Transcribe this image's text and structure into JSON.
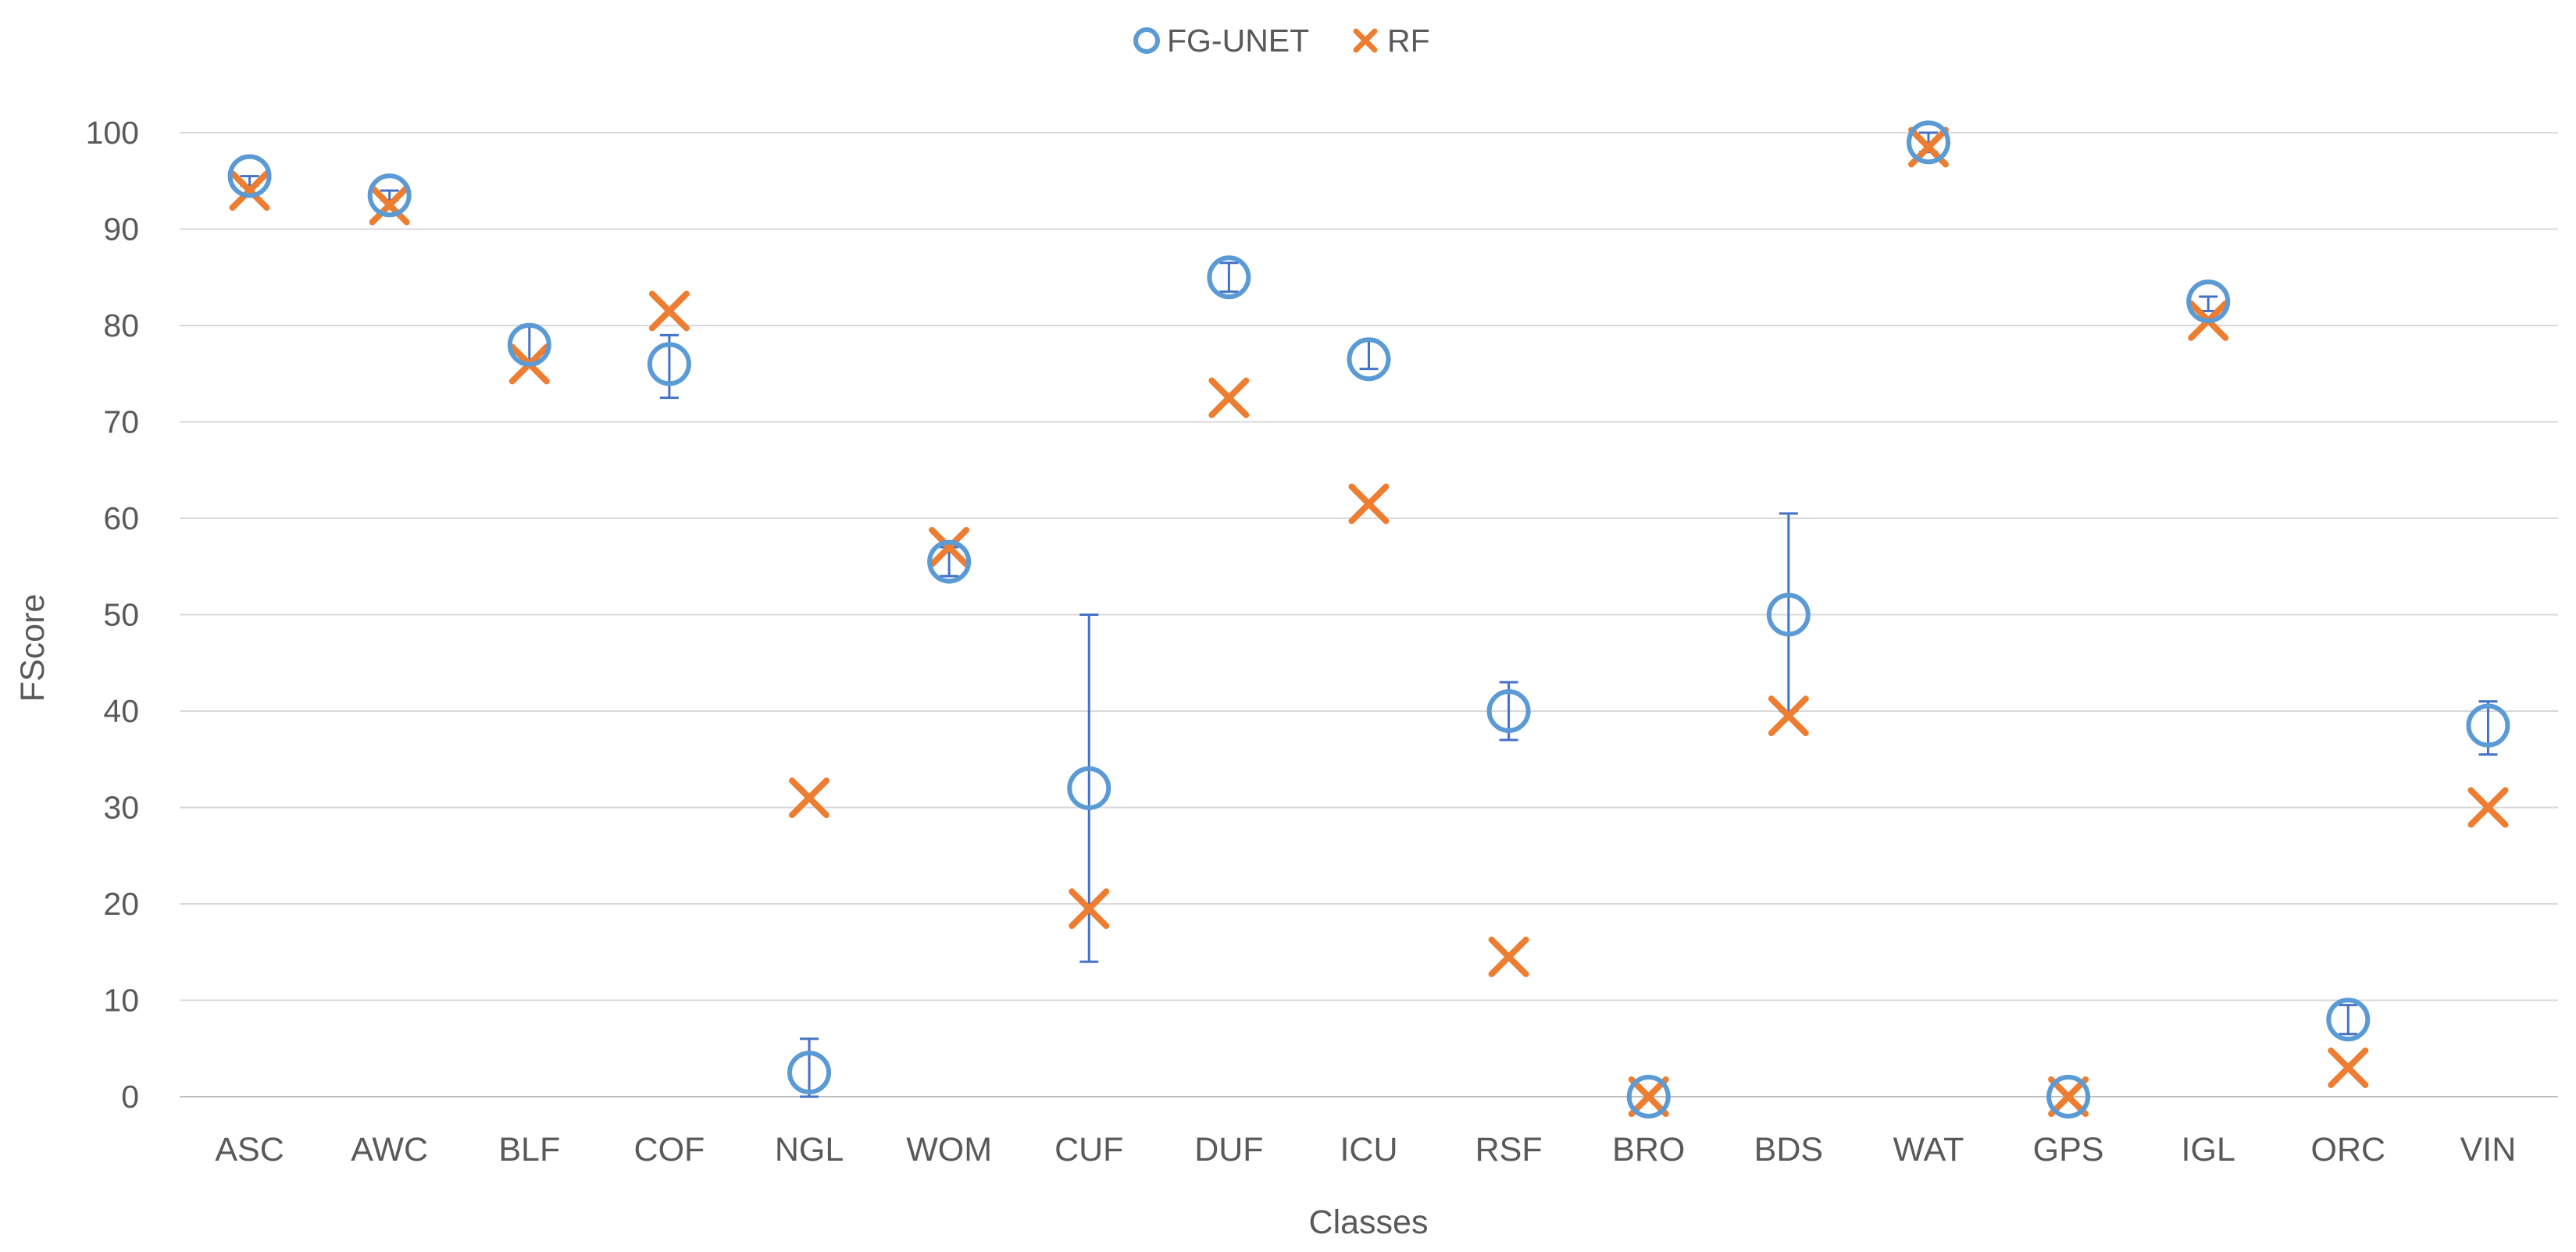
{
  "chart_data": {
    "type": "scatter",
    "title": "",
    "xlabel": "Classes",
    "ylabel": "FScore",
    "ylim": [
      0,
      100
    ],
    "yticks": [
      0,
      10,
      20,
      30,
      40,
      50,
      60,
      70,
      80,
      90,
      100
    ],
    "grid": true,
    "legend_position": "top-center",
    "categories": [
      "ASC",
      "AWC",
      "BLF",
      "COF",
      "NGL",
      "WOM",
      "CUF",
      "DUF",
      "ICU",
      "RSF",
      "BRO",
      "BDS",
      "WAT",
      "GPS",
      "IGL",
      "ORC",
      "VIN"
    ],
    "series": [
      {
        "name": "FG-UNET",
        "marker": "circle",
        "color": "#5B9BD5",
        "values": [
          95.5,
          93.5,
          78,
          76,
          2.5,
          55.5,
          32,
          85,
          76.5,
          40,
          0,
          50,
          99,
          0,
          82.5,
          8,
          38.5
        ],
        "error_low": [
          94.5,
          93,
          76,
          72.5,
          0,
          54,
          14,
          83.5,
          75.5,
          37,
          0,
          40,
          98,
          0,
          81.5,
          6.5,
          35.5
        ],
        "error_high": [
          95.5,
          94,
          80,
          79,
          6,
          57,
          50,
          86.5,
          78.5,
          43,
          0,
          60.5,
          100,
          0,
          83,
          9.5,
          41
        ]
      },
      {
        "name": "RF",
        "marker": "x",
        "color": "#ED7D31",
        "values": [
          94,
          92.5,
          76,
          81.5,
          31,
          57,
          19.5,
          72.5,
          61.5,
          14.5,
          0,
          39.5,
          98.5,
          0,
          80.5,
          3,
          30
        ]
      }
    ]
  }
}
